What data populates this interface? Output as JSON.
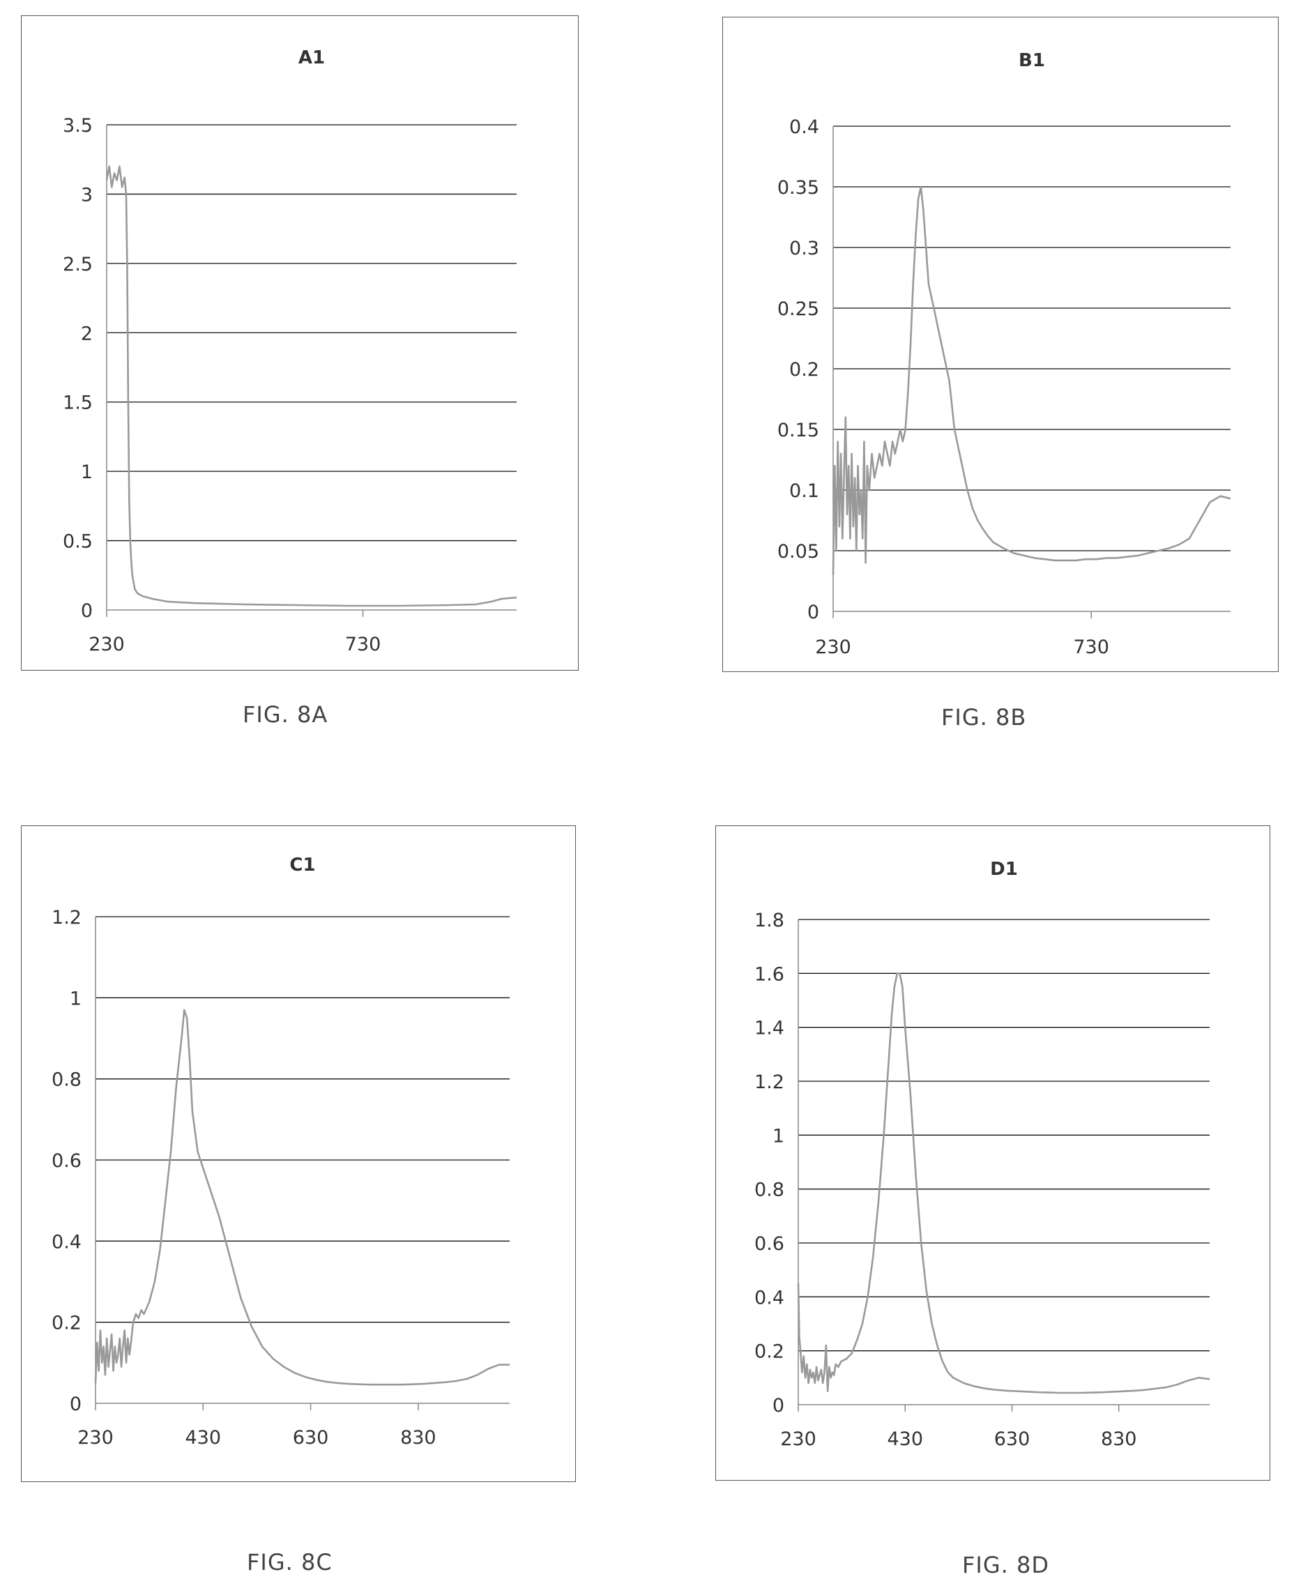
{
  "chart_data": [
    {
      "type": "line",
      "title": "A1",
      "caption": "FIG. 8A",
      "xlim": [
        230,
        1030
      ],
      "ylim": [
        0,
        3.5
      ],
      "xticks": [
        "230",
        "730"
      ],
      "yticks": [
        "0",
        "0.5",
        "1",
        "1.5",
        "2",
        "2.5",
        "3",
        "3.5"
      ],
      "series": [
        {
          "x": [
            230,
            235,
            240,
            245,
            250,
            255,
            260,
            265,
            268,
            270,
            272,
            274,
            276,
            278,
            280,
            285,
            290,
            300,
            320,
            350,
            400,
            500,
            600,
            700,
            800,
            900,
            950,
            980,
            1000,
            1030
          ],
          "y": [
            3.1,
            3.2,
            3.05,
            3.15,
            3.1,
            3.2,
            3.05,
            3.12,
            3.0,
            2.5,
            1.5,
            0.8,
            0.5,
            0.35,
            0.25,
            0.15,
            0.12,
            0.1,
            0.08,
            0.06,
            0.05,
            0.04,
            0.035,
            0.03,
            0.03,
            0.035,
            0.04,
            0.06,
            0.08,
            0.09
          ]
        }
      ]
    },
    {
      "type": "line",
      "title": "B1",
      "caption": "FIG. 8B",
      "xlim": [
        230,
        1000
      ],
      "ylim": [
        0,
        0.4
      ],
      "xticks": [
        "230",
        "730"
      ],
      "yticks": [
        "0",
        "0.05",
        "0.1",
        "0.15",
        "0.2",
        "0.25",
        "0.3",
        "0.35",
        "0.4"
      ],
      "series": [
        {
          "x": [
            230,
            233,
            236,
            239,
            242,
            245,
            248,
            251,
            254,
            257,
            260,
            263,
            266,
            269,
            272,
            275,
            278,
            281,
            284,
            287,
            290,
            293,
            296,
            300,
            305,
            310,
            315,
            320,
            325,
            330,
            335,
            340,
            345,
            350,
            355,
            360,
            365,
            370,
            375,
            380,
            385,
            390,
            395,
            400,
            405,
            410,
            415,
            420,
            425,
            430,
            435,
            440,
            445,
            450,
            455,
            460,
            465,
            470,
            480,
            490,
            500,
            510,
            520,
            530,
            540,
            560,
            580,
            600,
            620,
            640,
            660,
            680,
            700,
            720,
            740,
            760,
            780,
            800,
            820,
            840,
            860,
            880,
            900,
            920,
            940,
            960,
            980,
            1000
          ],
          "y": [
            0.03,
            0.12,
            0.05,
            0.14,
            0.07,
            0.13,
            0.06,
            0.11,
            0.16,
            0.08,
            0.12,
            0.06,
            0.13,
            0.07,
            0.11,
            0.05,
            0.12,
            0.08,
            0.1,
            0.06,
            0.14,
            0.04,
            0.12,
            0.1,
            0.13,
            0.11,
            0.12,
            0.13,
            0.12,
            0.14,
            0.13,
            0.12,
            0.14,
            0.13,
            0.14,
            0.15,
            0.14,
            0.15,
            0.18,
            0.22,
            0.27,
            0.31,
            0.34,
            0.35,
            0.33,
            0.3,
            0.27,
            0.26,
            0.25,
            0.24,
            0.23,
            0.22,
            0.21,
            0.2,
            0.19,
            0.17,
            0.15,
            0.14,
            0.12,
            0.1,
            0.085,
            0.075,
            0.068,
            0.062,
            0.057,
            0.052,
            0.048,
            0.046,
            0.044,
            0.043,
            0.042,
            0.042,
            0.042,
            0.043,
            0.043,
            0.044,
            0.044,
            0.045,
            0.046,
            0.048,
            0.05,
            0.052,
            0.055,
            0.06,
            0.075,
            0.09,
            0.095,
            0.093
          ]
        }
      ]
    },
    {
      "type": "line",
      "title": "C1",
      "caption": "FIG. 8C",
      "xlim": [
        230,
        1000
      ],
      "ylim": [
        0,
        1.2
      ],
      "xticks": [
        "230",
        "430",
        "630",
        "830"
      ],
      "yticks": [
        "0",
        "0.2",
        "0.4",
        "0.6",
        "0.8",
        "1",
        "1.2"
      ],
      "series": [
        {
          "x": [
            230,
            233,
            236,
            239,
            242,
            245,
            248,
            251,
            254,
            257,
            260,
            263,
            266,
            269,
            272,
            275,
            278,
            281,
            284,
            287,
            290,
            293,
            296,
            300,
            305,
            310,
            315,
            320,
            330,
            340,
            350,
            360,
            370,
            380,
            390,
            395,
            400,
            405,
            410,
            420,
            430,
            440,
            450,
            460,
            470,
            480,
            490,
            500,
            520,
            540,
            560,
            580,
            600,
            620,
            640,
            660,
            680,
            700,
            720,
            740,
            760,
            780,
            800,
            820,
            840,
            860,
            880,
            900,
            920,
            940,
            960,
            980,
            1000
          ],
          "y": [
            0.05,
            0.15,
            0.08,
            0.18,
            0.1,
            0.14,
            0.07,
            0.16,
            0.09,
            0.13,
            0.17,
            0.08,
            0.14,
            0.1,
            0.12,
            0.16,
            0.09,
            0.14,
            0.18,
            0.1,
            0.16,
            0.12,
            0.15,
            0.2,
            0.22,
            0.21,
            0.23,
            0.22,
            0.25,
            0.3,
            0.38,
            0.5,
            0.62,
            0.78,
            0.9,
            0.97,
            0.95,
            0.85,
            0.72,
            0.62,
            0.58,
            0.54,
            0.5,
            0.46,
            0.41,
            0.36,
            0.31,
            0.26,
            0.19,
            0.14,
            0.11,
            0.09,
            0.075,
            0.065,
            0.058,
            0.053,
            0.05,
            0.048,
            0.047,
            0.046,
            0.046,
            0.046,
            0.046,
            0.047,
            0.048,
            0.05,
            0.052,
            0.055,
            0.06,
            0.07,
            0.085,
            0.095,
            0.095
          ]
        }
      ]
    },
    {
      "type": "line",
      "title": "D1",
      "caption": "FIG. 8D",
      "xlim": [
        230,
        1000
      ],
      "ylim": [
        0,
        1.8
      ],
      "xticks": [
        "230",
        "430",
        "630",
        "830"
      ],
      "yticks": [
        "0",
        "0.2",
        "0.4",
        "0.6",
        "0.8",
        "1",
        "1.2",
        "1.4",
        "1.6",
        "1.8"
      ],
      "series": [
        {
          "x": [
            230,
            232,
            234,
            237,
            240,
            243,
            246,
            249,
            252,
            255,
            258,
            261,
            264,
            267,
            270,
            273,
            276,
            279,
            282,
            285,
            288,
            291,
            294,
            297,
            300,
            305,
            310,
            320,
            330,
            340,
            350,
            360,
            370,
            380,
            390,
            400,
            405,
            410,
            415,
            420,
            425,
            430,
            440,
            450,
            460,
            470,
            480,
            490,
            500,
            510,
            520,
            540,
            560,
            580,
            600,
            620,
            640,
            660,
            680,
            700,
            720,
            740,
            760,
            780,
            800,
            820,
            840,
            860,
            880,
            900,
            920,
            940,
            960,
            980,
            1000
          ],
          "y": [
            0.45,
            0.25,
            0.2,
            0.12,
            0.18,
            0.1,
            0.15,
            0.08,
            0.13,
            0.1,
            0.12,
            0.08,
            0.14,
            0.09,
            0.11,
            0.13,
            0.08,
            0.12,
            0.22,
            0.05,
            0.14,
            0.1,
            0.12,
            0.11,
            0.15,
            0.14,
            0.16,
            0.17,
            0.19,
            0.24,
            0.3,
            0.4,
            0.55,
            0.75,
            1.0,
            1.3,
            1.45,
            1.55,
            1.6,
            1.6,
            1.55,
            1.4,
            1.15,
            0.85,
            0.6,
            0.42,
            0.3,
            0.22,
            0.16,
            0.12,
            0.1,
            0.08,
            0.068,
            0.06,
            0.055,
            0.052,
            0.05,
            0.048,
            0.046,
            0.045,
            0.044,
            0.044,
            0.044,
            0.045,
            0.046,
            0.048,
            0.05,
            0.052,
            0.055,
            0.06,
            0.065,
            0.075,
            0.09,
            0.1,
            0.095
          ]
        }
      ]
    }
  ]
}
